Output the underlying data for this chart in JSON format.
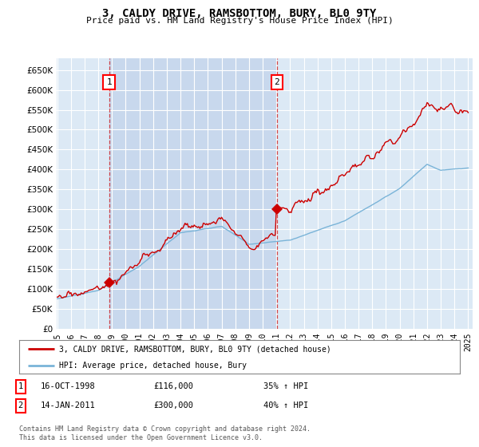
{
  "title": "3, CALDY DRIVE, RAMSBOTTOM, BURY, BL0 9TY",
  "subtitle": "Price paid vs. HM Land Registry's House Price Index (HPI)",
  "ylim": [
    0,
    680000
  ],
  "yticks": [
    0,
    50000,
    100000,
    150000,
    200000,
    250000,
    300000,
    350000,
    400000,
    450000,
    500000,
    550000,
    600000,
    650000
  ],
  "background_color": "#ffffff",
  "plot_bg_color": "#dce9f5",
  "shaded_bg_color": "#c8d8ed",
  "grid_color": "#ffffff",
  "transaction1_date": 1998.79,
  "transaction1_price": 116000,
  "transaction2_date": 2011.04,
  "transaction2_price": 300000,
  "hpi_line_color": "#7ab4d8",
  "property_line_color": "#cc0000",
  "legend_label_property": "3, CALDY DRIVE, RAMSBOTTOM, BURY, BL0 9TY (detached house)",
  "legend_label_hpi": "HPI: Average price, detached house, Bury",
  "footer_text": "Contains HM Land Registry data © Crown copyright and database right 2024.\nThis data is licensed under the Open Government Licence v3.0.",
  "table_row1": [
    "1",
    "16-OCT-1998",
    "£116,000",
    "35% ↑ HPI"
  ],
  "table_row2": [
    "2",
    "14-JAN-2011",
    "£300,000",
    "40% ↑ HPI"
  ]
}
